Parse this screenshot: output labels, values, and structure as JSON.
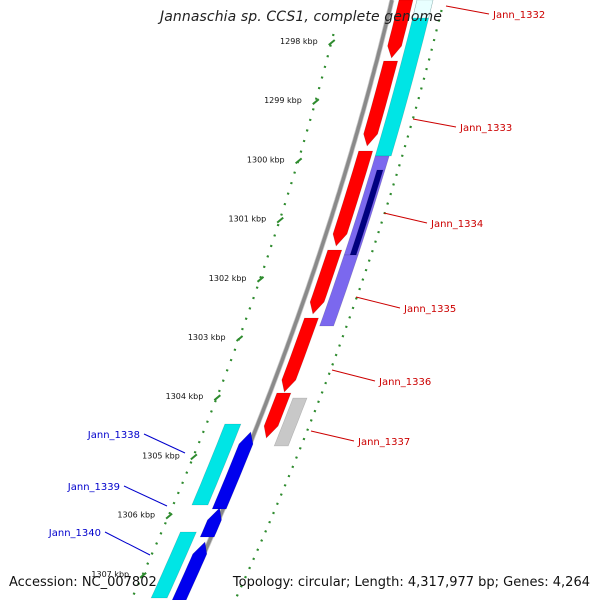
{
  "title": "Jannaschia sp. CCS1, complete genome",
  "footer": {
    "accession": "Accession: NC_007802",
    "info": "Topology: circular; Length: 4,317,977 bp; Genes: 4,264"
  },
  "colors": {
    "backbone": "#8a8a8a",
    "tick_marks": "#2e8b2e",
    "forward_label": "#cc0000",
    "reverse_label": "#0000cc",
    "gene_red": "#ff0000",
    "gene_cyan": "#00e5e5",
    "gene_blue": "#0000ee",
    "gene_navy": "#000080",
    "gene_slate": "#7b68ee",
    "gene_grey": "#c8c8c8"
  },
  "ticks": [
    {
      "label": "1298 kbp",
      "kbp": 1298
    },
    {
      "label": "1299 kbp",
      "kbp": 1299
    },
    {
      "label": "1300 kbp",
      "kbp": 1300
    },
    {
      "label": "1301 kbp",
      "kbp": 1301
    },
    {
      "label": "1302 kbp",
      "kbp": 1302
    },
    {
      "label": "1303 kbp",
      "kbp": 1303
    },
    {
      "label": "1304 kbp",
      "kbp": 1304
    },
    {
      "label": "1305 kbp",
      "kbp": 1305
    },
    {
      "label": "1306 kbp",
      "kbp": 1306
    },
    {
      "label": "1307 kbp",
      "kbp": 1307
    }
  ],
  "gene_labels": [
    {
      "name": "Jann_1332",
      "strand": "forward"
    },
    {
      "name": "Jann_1333",
      "strand": "forward"
    },
    {
      "name": "Jann_1334",
      "strand": "forward"
    },
    {
      "name": "Jann_1335",
      "strand": "forward"
    },
    {
      "name": "Jann_1336",
      "strand": "forward"
    },
    {
      "name": "Jann_1337",
      "strand": "forward"
    },
    {
      "name": "Jann_1338",
      "strand": "reverse"
    },
    {
      "name": "Jann_1339",
      "strand": "reverse"
    },
    {
      "name": "Jann_1340",
      "strand": "reverse"
    }
  ]
}
